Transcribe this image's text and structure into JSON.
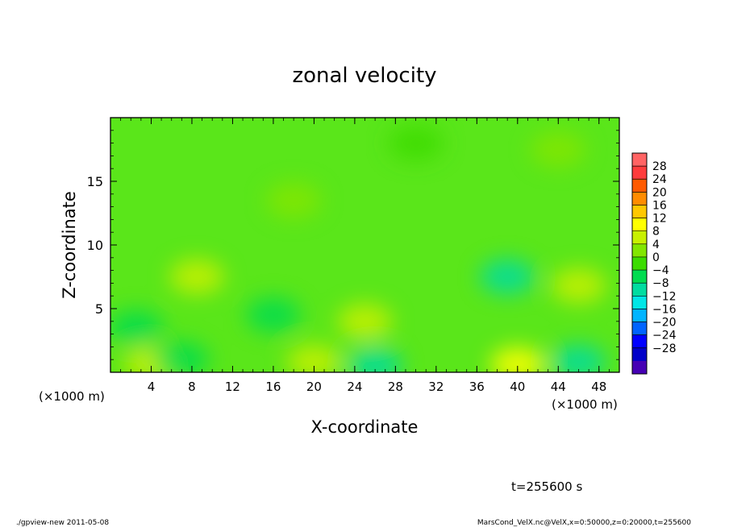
{
  "chart_data": {
    "type": "heatmap",
    "title": "zonal velocity",
    "xlabel": "X-coordinate",
    "ylabel": "Z-coordinate",
    "x_unit_label_left": "(×1000 m)",
    "x_unit_label_right": "(×1000 m)",
    "xlim": [
      0,
      50
    ],
    "ylim": [
      0,
      20
    ],
    "xticks": [
      4,
      8,
      12,
      16,
      20,
      24,
      28,
      32,
      36,
      40,
      44,
      48
    ],
    "yticks": [
      5,
      10,
      15
    ],
    "colorbar": {
      "labels": [
        "28",
        "24",
        "20",
        "16",
        "12",
        "8",
        "4",
        "0",
        "−4",
        "−8",
        "−12",
        "−16",
        "−20",
        "−24",
        "−28"
      ],
      "colors": [
        "#ff6464",
        "#ff3c3c",
        "#ff5a00",
        "#ff8c00",
        "#ffc800",
        "#ffff00",
        "#c8f000",
        "#82e600",
        "#3cdc00",
        "#00dc50",
        "#00dca0",
        "#00e6e6",
        "#00b4ff",
        "#0064ff",
        "#0000ff",
        "#0000c8",
        "#4600b4"
      ]
    },
    "features": [
      {
        "x": 8.5,
        "z": 7.5,
        "value": 6
      },
      {
        "x": 25,
        "z": 4,
        "value": 7
      },
      {
        "x": 46,
        "z": 6.8,
        "value": 8
      },
      {
        "x": 4,
        "z": 0.6,
        "value": 8
      },
      {
        "x": 20,
        "z": 0.8,
        "value": 6
      },
      {
        "x": 40,
        "z": 0.6,
        "value": 12
      },
      {
        "x": 2.5,
        "z": 3.5,
        "value": -6
      },
      {
        "x": 16,
        "z": 4.5,
        "value": -5
      },
      {
        "x": 26,
        "z": 0.5,
        "value": -8
      },
      {
        "x": 39,
        "z": 7.5,
        "value": -9
      },
      {
        "x": 46,
        "z": 0.8,
        "value": -10
      },
      {
        "x": 7,
        "z": 1,
        "value": -5
      },
      {
        "x": 30,
        "z": 18,
        "value": -2
      },
      {
        "x": 18,
        "z": 13.5,
        "value": 2
      },
      {
        "x": 44,
        "z": 17.5,
        "value": 2
      }
    ],
    "annotation": "t=255600 s",
    "footer_left": "./gpview-new  2011-05-08",
    "footer_right": "MarsCond_VelX.nc@VelX,x=0:50000,z=0:20000,t=255600"
  }
}
